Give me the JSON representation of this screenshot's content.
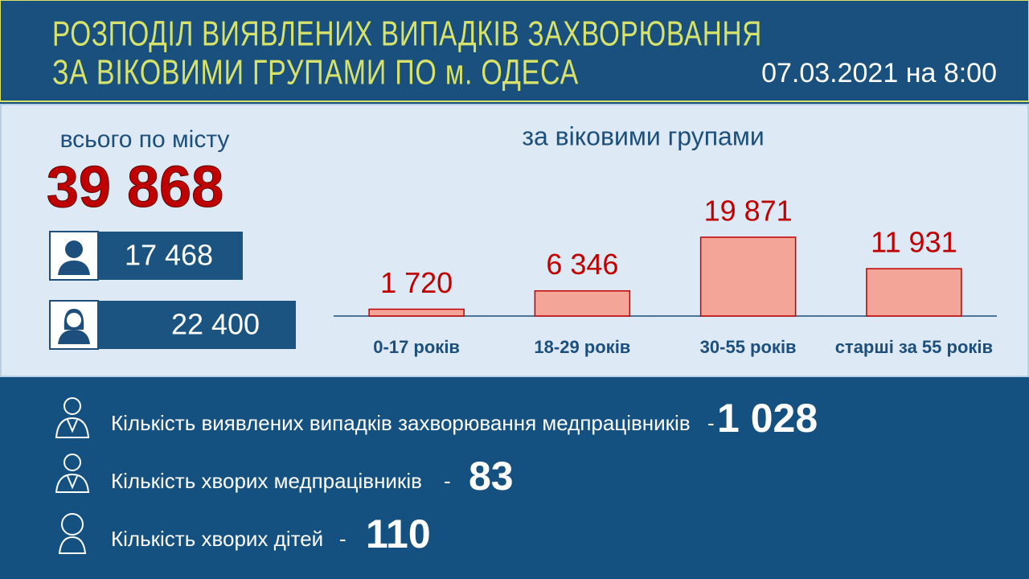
{
  "header": {
    "title_line1": "РОЗПОДІЛ ВИЯВЛЕНИХ ВИПАДКІВ ЗАХВОРЮВАННЯ",
    "title_line2": "ЗА ВІКОВИМИ ГРУПАМИ ПО м. ОДЕСА",
    "date": "07.03.2021 на 8:00"
  },
  "summary": {
    "label": "всього по місту",
    "total": "39 868",
    "male": "17 468",
    "female": "22 400"
  },
  "chart_data": {
    "type": "bar",
    "title": "за віковими групами",
    "categories": [
      "0-17 років",
      "18-29 років",
      "30-55 років",
      "старші за 55 років"
    ],
    "values": [
      1720,
      6346,
      19871,
      11931
    ],
    "value_labels": [
      "1 720",
      "6 346",
      "19 871",
      "11 931"
    ],
    "color": "#f3a598",
    "edge_color": "#c00000",
    "label_color": "#c00000"
  },
  "stats": [
    {
      "label": "Кількість виявлених випадків захворювання медпрацівників",
      "separator": "-",
      "value": "1 028"
    },
    {
      "label": "Кількість хворих медпрацівників",
      "separator": "-",
      "value": "83"
    },
    {
      "label": "Кількість хворих дітей",
      "separator": "-",
      "value": "110"
    }
  ]
}
